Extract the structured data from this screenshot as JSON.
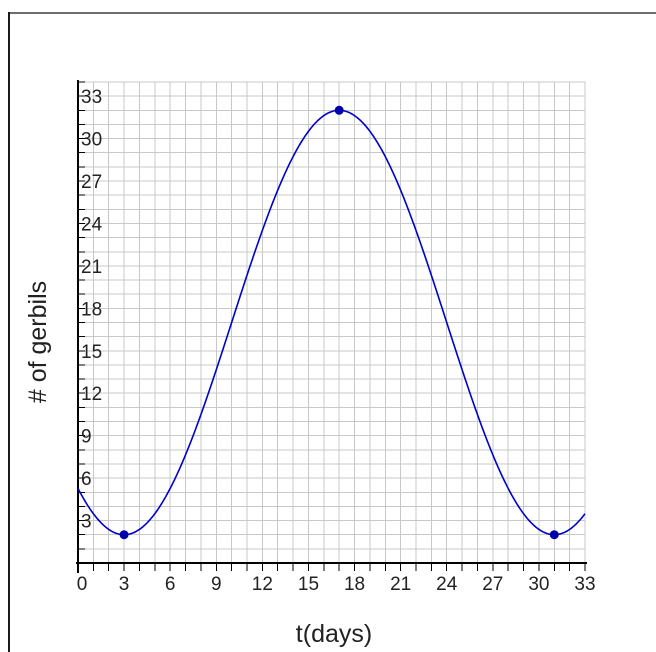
{
  "chart_data": {
    "type": "line",
    "title": "",
    "xlabel": "t(days)",
    "ylabel": "# of gerbils",
    "xlim": [
      0,
      33
    ],
    "ylim": [
      0,
      34
    ],
    "x_ticks": [
      {
        "value": 0,
        "label": "0"
      },
      {
        "value": 3,
        "label": "3"
      },
      {
        "value": 6,
        "label": "6"
      },
      {
        "value": 9,
        "label": "9"
      },
      {
        "value": 12,
        "label": "12"
      },
      {
        "value": 15,
        "label": "15"
      },
      {
        "value": 18,
        "label": "18"
      },
      {
        "value": 21,
        "label": "21"
      },
      {
        "value": 24,
        "label": "24"
      },
      {
        "value": 27,
        "label": "27"
      },
      {
        "value": 30,
        "label": "30"
      },
      {
        "value": 33,
        "label": "33"
      }
    ],
    "y_ticks": [
      {
        "value": 3,
        "label": "3"
      },
      {
        "value": 6,
        "label": "6"
      },
      {
        "value": 9,
        "label": "9"
      },
      {
        "value": 12,
        "label": "12"
      },
      {
        "value": 15,
        "label": "15"
      },
      {
        "value": 18,
        "label": "18"
      },
      {
        "value": 21,
        "label": "21"
      },
      {
        "value": 24,
        "label": "24"
      },
      {
        "value": 27,
        "label": "27"
      },
      {
        "value": 30,
        "label": "30"
      },
      {
        "value": 33,
        "label": "33"
      }
    ],
    "grid": true,
    "grid_step": 1,
    "series": [
      {
        "color": "#0000cc",
        "curve": {
          "kind": "cosine",
          "x_start": 0,
          "x_end": 33,
          "min_point": {
            "x": 3,
            "y": 2
          },
          "max_point": {
            "x": 17,
            "y": 32
          }
        },
        "points": [
          {
            "x": 3,
            "y": 2
          },
          {
            "x": 17,
            "y": 32
          },
          {
            "x": 31,
            "y": 2
          }
        ]
      }
    ],
    "colors": {
      "curve": "#0000cc",
      "marker": "#0000aa",
      "grid": "#c8c8c8",
      "axis": "#000000",
      "text": "#222222"
    }
  }
}
